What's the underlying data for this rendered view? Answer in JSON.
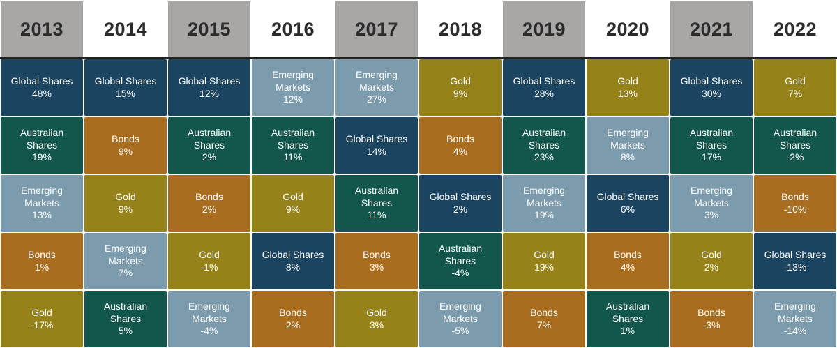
{
  "colors": {
    "Global Shares": "#1b4460",
    "Australian Shares": "#12564c",
    "Emerging Markets": "#7c9cae",
    "Gold": "#958219",
    "Bonds": "#a86d1f",
    "header_shade": "#a9a7a6"
  },
  "chart_data": {
    "type": "table",
    "title": "",
    "years": [
      "2013",
      "2014",
      "2015",
      "2016",
      "2017",
      "2018",
      "2019",
      "2020",
      "2021",
      "2022"
    ],
    "columns": [
      {
        "year": "2013",
        "shaded": true,
        "cells": [
          {
            "asset": "Global Shares",
            "lines": [
              "Global Shares"
            ],
            "value": "48%"
          },
          {
            "asset": "Australian Shares",
            "lines": [
              "Australian",
              "Shares"
            ],
            "value": "19%"
          },
          {
            "asset": "Emerging Markets",
            "lines": [
              "Emerging",
              "Markets"
            ],
            "value": "13%"
          },
          {
            "asset": "Bonds",
            "lines": [
              "Bonds"
            ],
            "value": "1%"
          },
          {
            "asset": "Gold",
            "lines": [
              "Gold"
            ],
            "value": "-17%"
          }
        ]
      },
      {
        "year": "2014",
        "shaded": false,
        "cells": [
          {
            "asset": "Global Shares",
            "lines": [
              "Global Shares"
            ],
            "value": "15%"
          },
          {
            "asset": "Bonds",
            "lines": [
              "Bonds"
            ],
            "value": "9%"
          },
          {
            "asset": "Gold",
            "lines": [
              "Gold"
            ],
            "value": "9%"
          },
          {
            "asset": "Emerging Markets",
            "lines": [
              "Emerging",
              "Markets"
            ],
            "value": "7%"
          },
          {
            "asset": "Australian Shares",
            "lines": [
              "Australian",
              "Shares"
            ],
            "value": "5%"
          }
        ]
      },
      {
        "year": "2015",
        "shaded": true,
        "cells": [
          {
            "asset": "Global Shares",
            "lines": [
              "Global Shares"
            ],
            "value": "12%"
          },
          {
            "asset": "Australian Shares",
            "lines": [
              "Australian",
              "Shares"
            ],
            "value": "2%"
          },
          {
            "asset": "Bonds",
            "lines": [
              "Bonds"
            ],
            "value": "2%"
          },
          {
            "asset": "Gold",
            "lines": [
              "Gold"
            ],
            "value": "-1%"
          },
          {
            "asset": "Emerging Markets",
            "lines": [
              "Emerging",
              "Markets"
            ],
            "value": "-4%"
          }
        ]
      },
      {
        "year": "2016",
        "shaded": false,
        "cells": [
          {
            "asset": "Emerging Markets",
            "lines": [
              "Emerging",
              "Markets"
            ],
            "value": "12%"
          },
          {
            "asset": "Australian Shares",
            "lines": [
              "Australian",
              "Shares"
            ],
            "value": "11%"
          },
          {
            "asset": "Gold",
            "lines": [
              "Gold"
            ],
            "value": "9%"
          },
          {
            "asset": "Global Shares",
            "lines": [
              "Global Shares"
            ],
            "value": "8%"
          },
          {
            "asset": "Bonds",
            "lines": [
              "Bonds"
            ],
            "value": "2%"
          }
        ]
      },
      {
        "year": "2017",
        "shaded": true,
        "cells": [
          {
            "asset": "Emerging Markets",
            "lines": [
              "Emerging",
              "Markets"
            ],
            "value": "27%"
          },
          {
            "asset": "Global Shares",
            "lines": [
              "Global Shares"
            ],
            "value": "14%"
          },
          {
            "asset": "Australian Shares",
            "lines": [
              "Australian",
              "Shares"
            ],
            "value": "11%"
          },
          {
            "asset": "Bonds",
            "lines": [
              "Bonds"
            ],
            "value": "3%"
          },
          {
            "asset": "Gold",
            "lines": [
              "Gold"
            ],
            "value": "3%"
          }
        ]
      },
      {
        "year": "2018",
        "shaded": false,
        "cells": [
          {
            "asset": "Gold",
            "lines": [
              "Gold"
            ],
            "value": "9%"
          },
          {
            "asset": "Bonds",
            "lines": [
              "Bonds"
            ],
            "value": "4%"
          },
          {
            "asset": "Global Shares",
            "lines": [
              "Global Shares"
            ],
            "value": "2%"
          },
          {
            "asset": "Australian Shares",
            "lines": [
              "Australian",
              "Shares"
            ],
            "value": "-4%"
          },
          {
            "asset": "Emerging Markets",
            "lines": [
              "Emerging",
              "Markets"
            ],
            "value": "-5%"
          }
        ]
      },
      {
        "year": "2019",
        "shaded": true,
        "cells": [
          {
            "asset": "Global Shares",
            "lines": [
              "Global Shares"
            ],
            "value": "28%"
          },
          {
            "asset": "Australian Shares",
            "lines": [
              "Australian",
              "Shares"
            ],
            "value": "23%"
          },
          {
            "asset": "Emerging Markets",
            "lines": [
              "Emerging",
              "Markets"
            ],
            "value": "19%"
          },
          {
            "asset": "Gold",
            "lines": [
              "Gold"
            ],
            "value": "19%"
          },
          {
            "asset": "Bonds",
            "lines": [
              "Bonds"
            ],
            "value": "7%"
          }
        ]
      },
      {
        "year": "2020",
        "shaded": false,
        "cells": [
          {
            "asset": "Gold",
            "lines": [
              "Gold"
            ],
            "value": "13%"
          },
          {
            "asset": "Emerging Markets",
            "lines": [
              "Emerging",
              "Markets"
            ],
            "value": "8%"
          },
          {
            "asset": "Global Shares",
            "lines": [
              "Global Shares"
            ],
            "value": "6%"
          },
          {
            "asset": "Bonds",
            "lines": [
              "Bonds"
            ],
            "value": "4%"
          },
          {
            "asset": "Australian Shares",
            "lines": [
              "Australian",
              "Shares"
            ],
            "value": "1%"
          }
        ]
      },
      {
        "year": "2021",
        "shaded": true,
        "cells": [
          {
            "asset": "Global Shares",
            "lines": [
              "Global Shares"
            ],
            "value": "30%"
          },
          {
            "asset": "Australian Shares",
            "lines": [
              "Australian",
              "Shares"
            ],
            "value": "17%"
          },
          {
            "asset": "Emerging Markets",
            "lines": [
              "Emerging",
              "Markets"
            ],
            "value": "3%"
          },
          {
            "asset": "Gold",
            "lines": [
              "Gold"
            ],
            "value": "2%"
          },
          {
            "asset": "Bonds",
            "lines": [
              "Bonds"
            ],
            "value": "-3%"
          }
        ]
      },
      {
        "year": "2022",
        "shaded": false,
        "cells": [
          {
            "asset": "Gold",
            "lines": [
              "Gold"
            ],
            "value": "7%"
          },
          {
            "asset": "Australian Shares",
            "lines": [
              "Australian",
              "Shares"
            ],
            "value": "-2%"
          },
          {
            "asset": "Bonds",
            "lines": [
              "Bonds"
            ],
            "value": "-10%"
          },
          {
            "asset": "Global Shares",
            "lines": [
              "Global Shares"
            ],
            "value": "-13%"
          },
          {
            "asset": "Emerging Markets",
            "lines": [
              "Emerging",
              "Markets"
            ],
            "value": "-14%"
          }
        ]
      }
    ]
  }
}
